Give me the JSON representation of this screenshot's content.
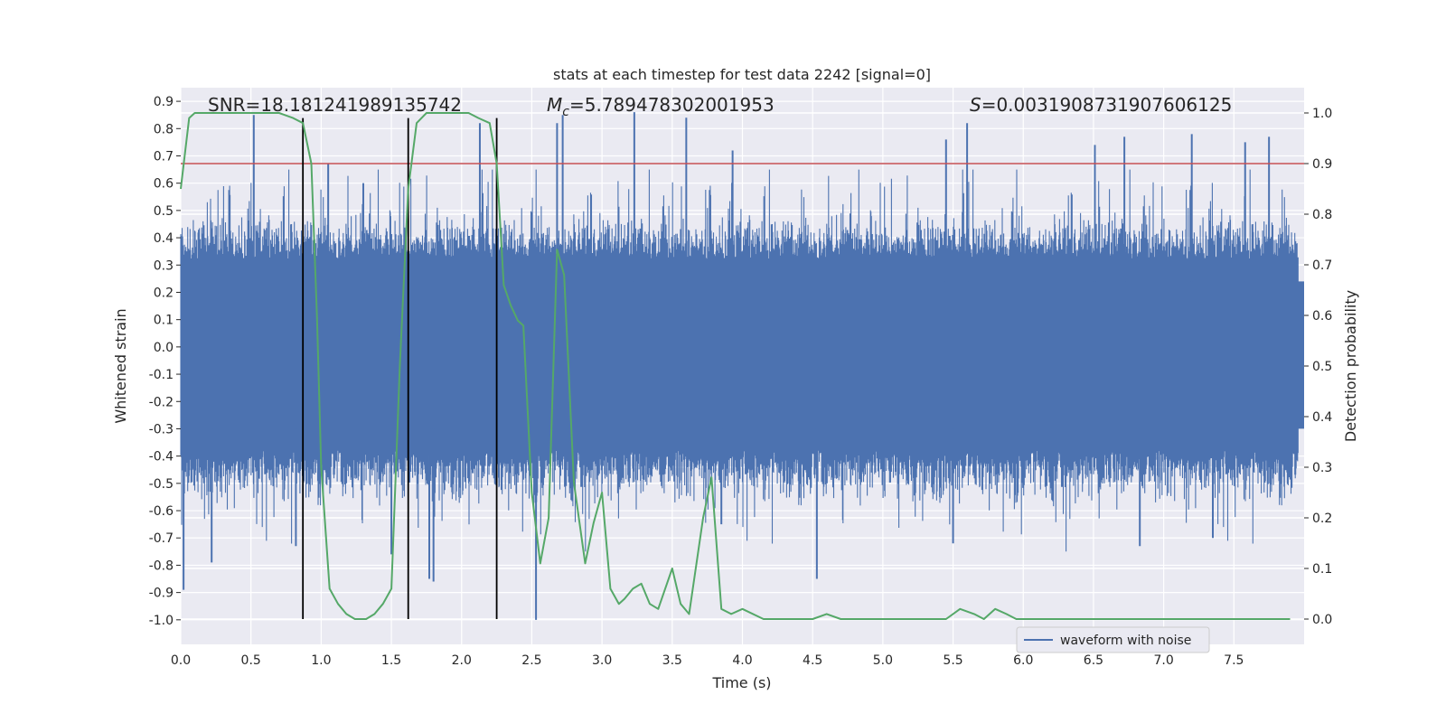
{
  "chart_data": {
    "type": "line",
    "title": "stats at each timestep for test data 2242 [signal=0]",
    "xlabel": "Time (s)",
    "ylabel_left": "Whitened strain",
    "ylabel_right": "Detection probability",
    "xlim": [
      0.0,
      8.0
    ],
    "ylim_left": [
      -1.09,
      0.95
    ],
    "ylim_right": [
      -0.05,
      1.05
    ],
    "x_ticks": [
      "0.0",
      "0.5",
      "1.0",
      "1.5",
      "2.0",
      "2.5",
      "3.0",
      "3.5",
      "4.0",
      "4.5",
      "5.0",
      "5.5",
      "6.0",
      "6.5",
      "7.0",
      "7.5"
    ],
    "y_left_ticks": [
      "0.9",
      "0.8",
      "0.7",
      "0.6",
      "0.5",
      "0.4",
      "0.3",
      "0.2",
      "0.1",
      "0.0",
      "-0.1",
      "-0.2",
      "-0.3",
      "-0.4",
      "-0.5",
      "-0.6",
      "-0.7",
      "-0.8",
      "-0.9",
      "-1.0"
    ],
    "y_right_ticks": [
      "1.0",
      "0.9",
      "0.8",
      "0.7",
      "0.6",
      "0.5",
      "0.4",
      "0.3",
      "0.2",
      "0.1",
      "0.0"
    ],
    "grid": true,
    "legend_position": "lower-right",
    "annotations": {
      "snr": "SNR=18.181241989135742",
      "mc_symbol": "M",
      "mc_subscript": "c",
      "mc_value": "=5.789478302001953",
      "s_symbol": "S",
      "s_value": "=0.0031908731907606125"
    },
    "threshold": {
      "value": 0.9,
      "axis": "right",
      "color": "#c44e52"
    },
    "vertical_markers": {
      "x": [
        0.87,
        1.62,
        2.25
      ],
      "color": "#000000"
    },
    "series": [
      {
        "name": "waveform with noise",
        "axis": "left",
        "color": "#4c72b0",
        "seed": 2242,
        "samples": 2400,
        "noise_band": [
          -0.55,
          0.45
        ],
        "spikes_up": [
          {
            "x": 0.52,
            "y": 0.85
          },
          {
            "x": 1.05,
            "y": 0.67
          },
          {
            "x": 1.3,
            "y": 0.6
          },
          {
            "x": 2.13,
            "y": 0.82
          },
          {
            "x": 2.68,
            "y": 0.82
          },
          {
            "x": 2.72,
            "y": 0.85
          },
          {
            "x": 3.23,
            "y": 0.86
          },
          {
            "x": 3.6,
            "y": 0.84
          },
          {
            "x": 3.93,
            "y": 0.72
          },
          {
            "x": 5.45,
            "y": 0.76
          },
          {
            "x": 5.6,
            "y": 0.82
          },
          {
            "x": 6.51,
            "y": 0.74
          },
          {
            "x": 6.72,
            "y": 0.77
          },
          {
            "x": 7.2,
            "y": 0.78
          },
          {
            "x": 7.58,
            "y": 0.75
          },
          {
            "x": 7.75,
            "y": 0.77
          }
        ],
        "spikes_down": [
          {
            "x": 0.02,
            "y": -0.89
          },
          {
            "x": 0.22,
            "y": -0.79
          },
          {
            "x": 1.8,
            "y": -0.86
          },
          {
            "x": 1.77,
            "y": -0.85
          },
          {
            "x": 2.53,
            "y": -1.0
          },
          {
            "x": 4.53,
            "y": -0.85
          },
          {
            "x": 3.85,
            "y": -0.65
          },
          {
            "x": 6.83,
            "y": -0.73
          },
          {
            "x": 1.5,
            "y": -0.76
          },
          {
            "x": 0.82,
            "y": -0.73
          },
          {
            "x": 5.5,
            "y": -0.72
          },
          {
            "x": 7.35,
            "y": -0.7
          }
        ]
      },
      {
        "name": "detection probability",
        "axis": "right",
        "color": "#55a868",
        "points": [
          [
            0.0,
            0.85
          ],
          [
            0.06,
            0.99
          ],
          [
            0.1,
            1.0
          ],
          [
            0.3,
            1.0
          ],
          [
            0.5,
            1.0
          ],
          [
            0.7,
            1.0
          ],
          [
            0.8,
            0.99
          ],
          [
            0.87,
            0.98
          ],
          [
            0.93,
            0.9
          ],
          [
            0.97,
            0.6
          ],
          [
            1.0,
            0.3
          ],
          [
            1.06,
            0.06
          ],
          [
            1.12,
            0.03
          ],
          [
            1.18,
            0.01
          ],
          [
            1.24,
            0.0
          ],
          [
            1.32,
            0.0
          ],
          [
            1.38,
            0.01
          ],
          [
            1.44,
            0.03
          ],
          [
            1.5,
            0.06
          ],
          [
            1.56,
            0.5
          ],
          [
            1.62,
            0.85
          ],
          [
            1.68,
            0.98
          ],
          [
            1.75,
            1.0
          ],
          [
            1.9,
            1.0
          ],
          [
            2.05,
            1.0
          ],
          [
            2.12,
            0.99
          ],
          [
            2.2,
            0.98
          ],
          [
            2.25,
            0.9
          ],
          [
            2.3,
            0.66
          ],
          [
            2.35,
            0.62
          ],
          [
            2.4,
            0.59
          ],
          [
            2.44,
            0.58
          ],
          [
            2.5,
            0.25
          ],
          [
            2.56,
            0.11
          ],
          [
            2.62,
            0.2
          ],
          [
            2.68,
            0.73
          ],
          [
            2.73,
            0.68
          ],
          [
            2.8,
            0.27
          ],
          [
            2.88,
            0.11
          ],
          [
            2.94,
            0.19
          ],
          [
            3.0,
            0.25
          ],
          [
            3.06,
            0.06
          ],
          [
            3.12,
            0.03
          ],
          [
            3.16,
            0.04
          ],
          [
            3.22,
            0.06
          ],
          [
            3.28,
            0.07
          ],
          [
            3.34,
            0.03
          ],
          [
            3.4,
            0.02
          ],
          [
            3.5,
            0.1
          ],
          [
            3.56,
            0.03
          ],
          [
            3.62,
            0.01
          ],
          [
            3.72,
            0.2
          ],
          [
            3.78,
            0.28
          ],
          [
            3.85,
            0.02
          ],
          [
            3.92,
            0.01
          ],
          [
            4.0,
            0.02
          ],
          [
            4.15,
            0.0
          ],
          [
            4.3,
            0.0
          ],
          [
            4.5,
            0.0
          ],
          [
            4.6,
            0.01
          ],
          [
            4.7,
            0.0
          ],
          [
            4.8,
            0.0
          ],
          [
            4.95,
            0.0
          ],
          [
            5.2,
            0.0
          ],
          [
            5.45,
            0.0
          ],
          [
            5.55,
            0.02
          ],
          [
            5.65,
            0.01
          ],
          [
            5.72,
            0.0
          ],
          [
            5.8,
            0.02
          ],
          [
            5.88,
            0.01
          ],
          [
            5.95,
            0.0
          ],
          [
            6.2,
            0.0
          ],
          [
            6.6,
            0.0
          ],
          [
            7.0,
            0.0
          ],
          [
            7.4,
            0.0
          ],
          [
            7.9,
            0.0
          ]
        ]
      }
    ]
  },
  "legend": {
    "entries": [
      {
        "label": "waveform with noise",
        "color": "#4c72b0"
      }
    ]
  }
}
